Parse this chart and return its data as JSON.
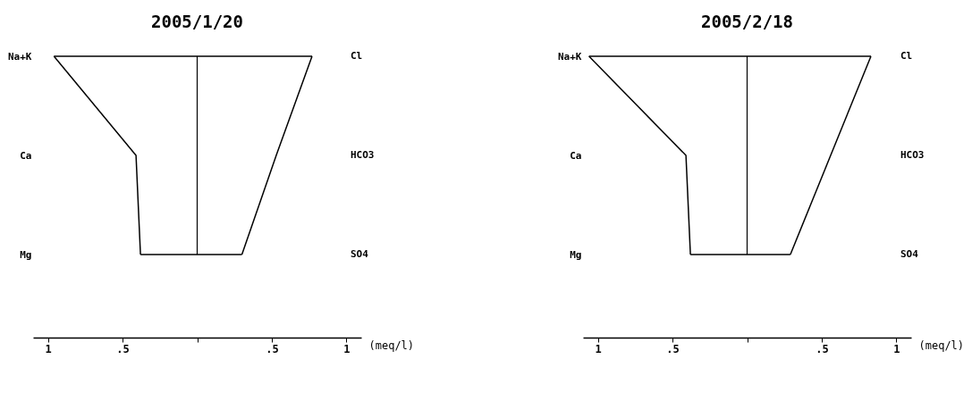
{
  "chart_data": [
    {
      "type": "line",
      "orientation": "horizontal",
      "title": "2005/1/20",
      "xlabel": "(meq/l)",
      "categories": [
        "Na+K",
        "Ca",
        "Mg"
      ],
      "y2_categories": [
        "Cl",
        "HCO3",
        "SO4"
      ],
      "marker": "none",
      "line_style": "solid",
      "grid": false,
      "series": [
        {
          "color": "#000000",
          "values": [
            -0.96,
            -0.41,
            -0.38
          ]
        },
        {
          "color": "#000000",
          "axis": "y2",
          "values": [
            0.77,
            0.53,
            0.3
          ]
        }
      ],
      "ref_lines": [
        {
          "axis": "x",
          "value": 0,
          "color": "#000000"
        }
      ],
      "xlim": [
        -1.1,
        1.1
      ],
      "xticks": [
        {
          "value": -1,
          "label": "1"
        },
        {
          "value": -0.5,
          "label": ".5"
        },
        {
          "value": 0,
          "label": null
        },
        {
          "value": 0.5,
          "label": ".5"
        },
        {
          "value": 1,
          "label": "1"
        }
      ]
    },
    {
      "type": "line",
      "orientation": "horizontal",
      "title": "2005/2/18",
      "xlabel": "(meq/l)",
      "categories": [
        "Na+K",
        "Ca",
        "Mg"
      ],
      "y2_categories": [
        "Cl",
        "HCO3",
        "SO4"
      ],
      "marker": "none",
      "line_style": "solid",
      "grid": false,
      "series": [
        {
          "color": "#000000",
          "values": [
            -1.06,
            -0.41,
            -0.38
          ]
        },
        {
          "color": "#000000",
          "axis": "y2",
          "values": [
            0.83,
            0.56,
            0.29
          ]
        }
      ],
      "ref_lines": [
        {
          "axis": "x",
          "value": 0,
          "color": "#000000"
        }
      ],
      "xlim": [
        -1.1,
        1.1
      ],
      "xticks": [
        {
          "value": -1,
          "label": "1"
        },
        {
          "value": -0.5,
          "label": ".5"
        },
        {
          "value": 0,
          "label": null
        },
        {
          "value": 0.5,
          "label": ".5"
        },
        {
          "value": 1,
          "label": "1"
        }
      ]
    }
  ]
}
